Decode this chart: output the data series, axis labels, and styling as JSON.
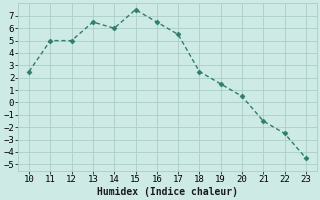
{
  "x": [
    10,
    11,
    12,
    13,
    14,
    15,
    16,
    17,
    18,
    19,
    20,
    21,
    22,
    23
  ],
  "y": [
    2.5,
    5.0,
    5.0,
    6.5,
    6.0,
    7.5,
    6.5,
    5.5,
    2.5,
    1.5,
    0.5,
    -1.5,
    -2.5,
    -4.5
  ],
  "line_color": "#2e7d6e",
  "marker": "D",
  "marker_size": 2.5,
  "line_width": 1.0,
  "background_color": "#ceeae4",
  "grid_color": "#aacfc8",
  "xlabel": "Humidex (Indice chaleur)",
  "xlabel_fontsize": 7,
  "tick_fontsize": 6.5,
  "xlim": [
    9.5,
    23.5
  ],
  "ylim": [
    -5.5,
    8.0
  ],
  "yticks": [
    -5,
    -4,
    -3,
    -2,
    -1,
    0,
    1,
    2,
    3,
    4,
    5,
    6,
    7
  ],
  "xticks": [
    10,
    11,
    12,
    13,
    14,
    15,
    16,
    17,
    18,
    19,
    20,
    21,
    22,
    23
  ]
}
